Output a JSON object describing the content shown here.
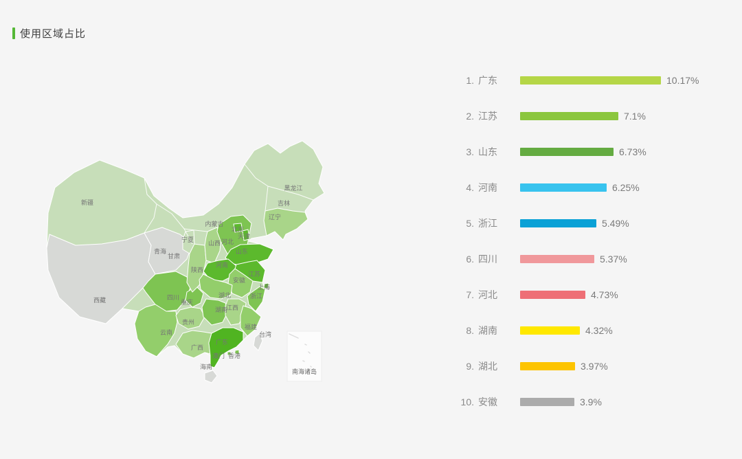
{
  "page": {
    "background": "#f5f5f5"
  },
  "header": {
    "title": "使用区域占比",
    "accent_color": "#55b837"
  },
  "ranking": {
    "max_value": 10.17,
    "items": [
      {
        "rank": "1.",
        "name": "广东",
        "value": 10.17,
        "label": "10.17%",
        "color": "#b5d647"
      },
      {
        "rank": "2.",
        "name": "江苏",
        "value": 7.1,
        "label": "7.1%",
        "color": "#8bc63e"
      },
      {
        "rank": "3.",
        "name": "山东",
        "value": 6.73,
        "label": "6.73%",
        "color": "#64ab41"
      },
      {
        "rank": "4.",
        "name": "河南",
        "value": 6.25,
        "label": "6.25%",
        "color": "#38c3ee"
      },
      {
        "rank": "5.",
        "name": "浙江",
        "value": 5.49,
        "label": "5.49%",
        "color": "#0aa1d6"
      },
      {
        "rank": "6.",
        "name": "四川",
        "value": 5.37,
        "label": "5.37%",
        "color": "#f0989b"
      },
      {
        "rank": "7.",
        "name": "河北",
        "value": 4.73,
        "label": "4.73%",
        "color": "#ee6f76"
      },
      {
        "rank": "8.",
        "name": "湖南",
        "value": 4.32,
        "label": "4.32%",
        "color": "#ffe800"
      },
      {
        "rank": "9.",
        "name": "湖北",
        "value": 3.97,
        "label": "3.97%",
        "color": "#fdc400"
      },
      {
        "rank": "10.",
        "name": "安徽",
        "value": 3.9,
        "label": "3.9%",
        "color": "#ababab"
      }
    ]
  },
  "map": {
    "south_sea_label": "南海诸岛",
    "palette": {
      "high": "#50b421",
      "mid_high": "#5cb92d",
      "mid": "#7ec452",
      "low_mid": "#93ce6b",
      "light": "#a9d589",
      "base": "#c7deb9",
      "none": "#d7d9d6"
    },
    "provinces": [
      {
        "id": "xinjiang",
        "name": "新疆",
        "level": "base"
      },
      {
        "id": "xizang",
        "name": "西藏",
        "level": "none"
      },
      {
        "id": "qinghai",
        "name": "青海",
        "level": "none"
      },
      {
        "id": "gansu",
        "name": "甘肃",
        "level": "none"
      },
      {
        "id": "neimenggu",
        "name": "内蒙古",
        "level": "base"
      },
      {
        "id": "ningxia",
        "name": "宁夏",
        "level": "base"
      },
      {
        "id": "shaanxi",
        "name": "陕西",
        "level": "light"
      },
      {
        "id": "shanxi",
        "name": "山西",
        "level": "light"
      },
      {
        "id": "hebei",
        "name": "河北",
        "level": "mid"
      },
      {
        "id": "beijing",
        "name": "北京",
        "level": "mid_high"
      },
      {
        "id": "tianjin",
        "name": "天津",
        "level": "mid_high"
      },
      {
        "id": "shandong",
        "name": "山东",
        "level": "mid_high"
      },
      {
        "id": "henan",
        "name": "河南",
        "level": "mid_high"
      },
      {
        "id": "jiangsu",
        "name": "江苏",
        "level": "mid_high"
      },
      {
        "id": "shanghai",
        "name": "上海",
        "level": "mid_high"
      },
      {
        "id": "anhui",
        "name": "安徽",
        "level": "low_mid"
      },
      {
        "id": "zhejiang",
        "name": "浙江",
        "level": "mid"
      },
      {
        "id": "hubei",
        "name": "湖北",
        "level": "low_mid"
      },
      {
        "id": "chongqing",
        "name": "重庆",
        "level": "mid"
      },
      {
        "id": "sichuan",
        "name": "四川",
        "level": "mid"
      },
      {
        "id": "guizhou",
        "name": "贵州",
        "level": "light"
      },
      {
        "id": "yunnan",
        "name": "云南",
        "level": "low_mid"
      },
      {
        "id": "hunan",
        "name": "湖南",
        "level": "mid"
      },
      {
        "id": "jiangxi",
        "name": "江西",
        "level": "light"
      },
      {
        "id": "fujian",
        "name": "福建",
        "level": "low_mid"
      },
      {
        "id": "taiwan",
        "name": "台湾",
        "level": "none"
      },
      {
        "id": "guangxi",
        "name": "广西",
        "level": "light"
      },
      {
        "id": "guangdong",
        "name": "广东",
        "level": "high"
      },
      {
        "id": "aomen",
        "name": "澳门",
        "level": "mid"
      },
      {
        "id": "xianggang",
        "name": "香港",
        "level": "mid"
      },
      {
        "id": "hainan",
        "name": "海南",
        "level": "none"
      },
      {
        "id": "heilongjiang",
        "name": "黑龙江",
        "level": "base"
      },
      {
        "id": "jilin",
        "name": "吉林",
        "level": "base"
      },
      {
        "id": "liaoning",
        "name": "辽宁",
        "level": "light"
      }
    ]
  },
  "chart_data": [
    {
      "type": "bar",
      "title": "使用区域占比",
      "orientation": "horizontal",
      "categories": [
        "广东",
        "江苏",
        "山东",
        "河南",
        "浙江",
        "四川",
        "河北",
        "湖南",
        "湖北",
        "安徽"
      ],
      "values": [
        10.17,
        7.1,
        6.73,
        6.25,
        5.49,
        5.37,
        4.73,
        4.32,
        3.97,
        3.9
      ],
      "value_labels": [
        "10.17%",
        "7.1%",
        "6.73%",
        "6.25%",
        "5.49%",
        "5.37%",
        "4.73%",
        "4.32%",
        "3.97%",
        "3.9%"
      ],
      "xlim": [
        0,
        10.17
      ],
      "grid": false,
      "legend": "none"
    },
    {
      "type": "heatmap",
      "subtype": "china_map_choropleth",
      "note": "China map shaded green by usage share; gray = lowest/no data",
      "regions_source": "map.provinces"
    }
  ]
}
